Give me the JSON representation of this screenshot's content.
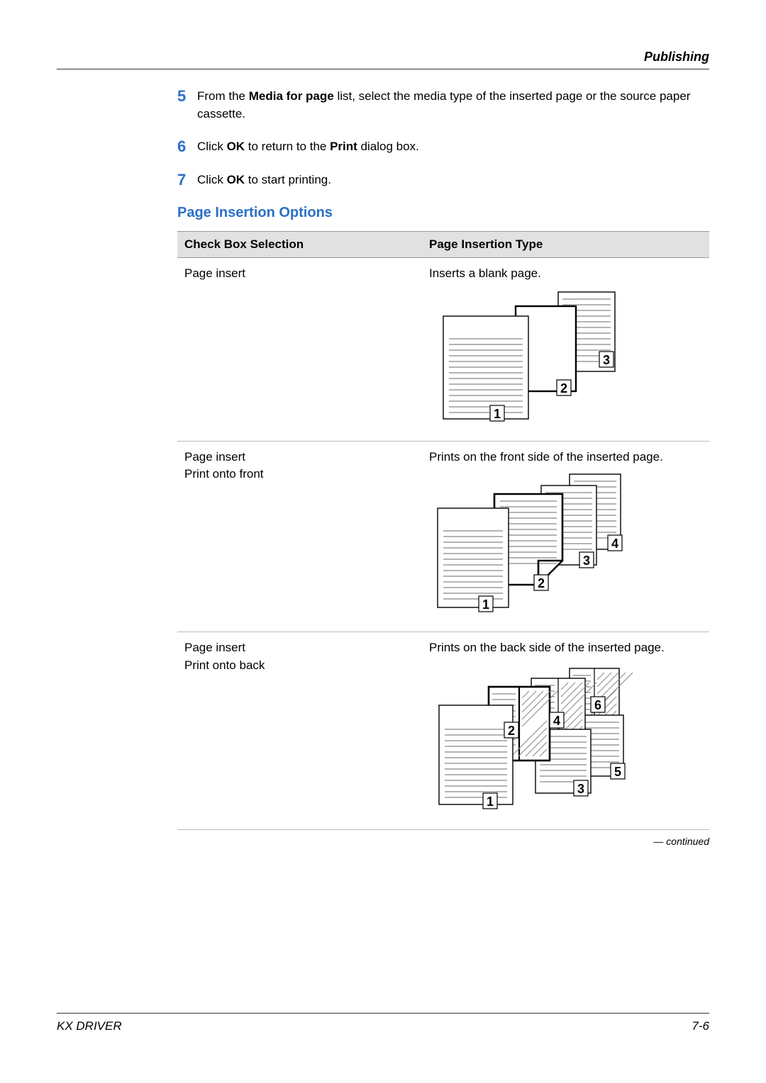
{
  "header": {
    "title": "Publishing"
  },
  "steps": [
    {
      "num": "5",
      "pre": "From the ",
      "bold1": "Media for page",
      "after1": " list, select the media type of the inserted page or the source paper cassette."
    },
    {
      "num": "6",
      "pre": "Click ",
      "bold1": "OK",
      "after1": " to return to the ",
      "bold2": "Print",
      "after2": " dialog box."
    },
    {
      "num": "7",
      "pre": "Click ",
      "bold1": "OK",
      "after1": " to start printing."
    }
  ],
  "section": {
    "title": "Page Insertion Options"
  },
  "table": {
    "headers": {
      "col1": "Check Box Selection",
      "col2": "Page Insertion Type"
    },
    "rows": [
      {
        "sel_line1": "Page insert",
        "sel_line2": "",
        "desc": "Inserts a blank page.",
        "diagram": "blank"
      },
      {
        "sel_line1": "Page insert",
        "sel_line2": "Print onto front",
        "desc": "Prints on the front side of the inserted page.",
        "diagram": "front"
      },
      {
        "sel_line1": "Page insert",
        "sel_line2": "Print onto back",
        "desc": "Prints on the back side of the inserted page.",
        "diagram": "back"
      }
    ],
    "continued": "— continued"
  },
  "footer": {
    "left": "KX DRIVER",
    "right": "7-6"
  },
  "style": {
    "accent": "#2a6fc9",
    "table_hdr_bg": "#e1e1e1",
    "line_color": "#888888",
    "page_stroke": "#000000",
    "badge_font": "Arial Black, Arial, sans-serif"
  }
}
